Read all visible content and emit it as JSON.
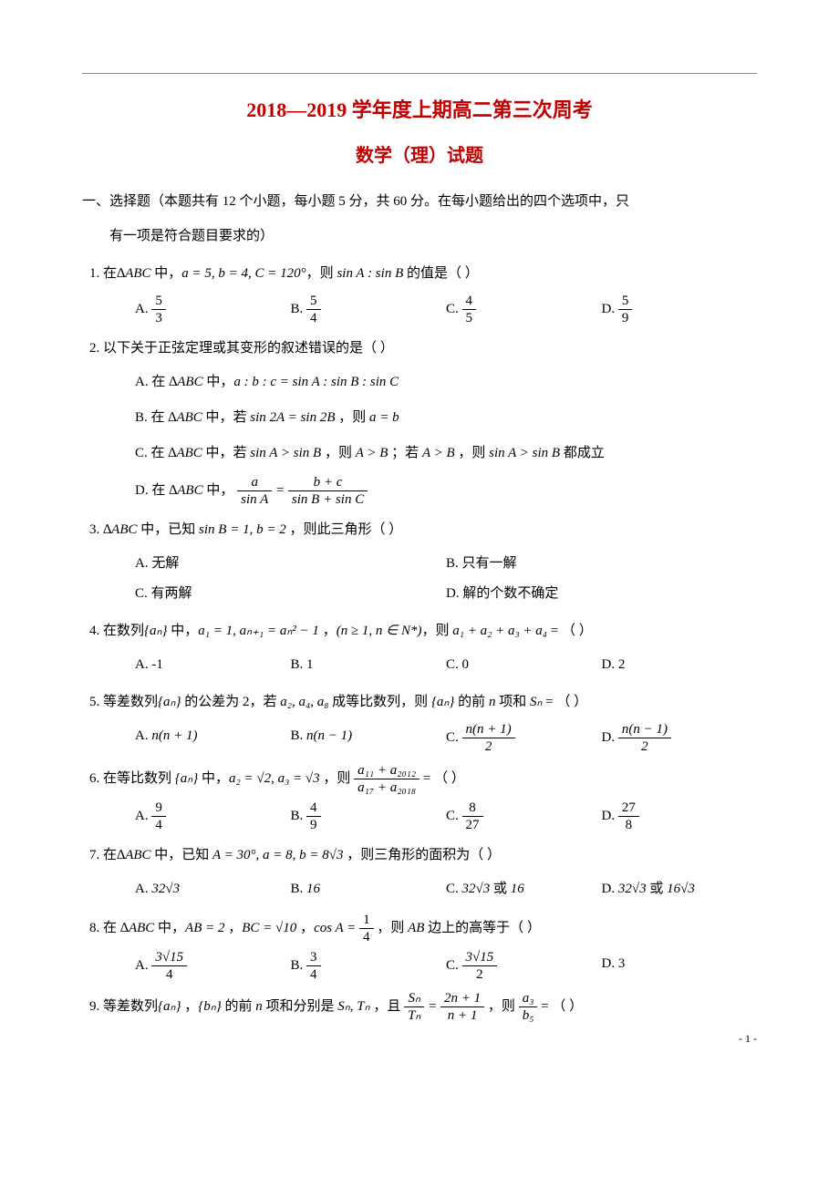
{
  "header": {
    "title": "2018—2019 学年度上期高二第三次周考",
    "subtitle": "数学（理）试题"
  },
  "section1": {
    "header": "一、选择题（本题共有 12 个小题，每小题 5 分，共 60 分。在每小题给出的四个选项中，只",
    "header_cont": "有一项是符合题目要求的）"
  },
  "q1": {
    "stem_pre": "1.  在",
    "stem_delta": "∆ABC",
    "stem_mid": " 中，",
    "stem_eq": "a = 5, b = 4, C = 120°",
    "stem_mid2": "，则 ",
    "stem_ratio": "sin A : sin B",
    "stem_post": " 的值是（     ）",
    "cA": "A.",
    "cA_num": "5",
    "cA_den": "3",
    "cB": "B.",
    "cB_num": "5",
    "cB_den": "4",
    "cC": "C.",
    "cC_num": "4",
    "cC_den": "5",
    "cD": "D.",
    "cD_num": "5",
    "cD_den": "9"
  },
  "q2": {
    "stem": "2.  以下关于正弦定理或其变形的叙述错误的是（     ）",
    "cA_pre": "A. 在 ",
    "cA_abc": "∆ABC",
    "cA_mid": " 中，",
    "cA_eq": "a : b : c = sin A : sin B : sin C",
    "cB_pre": "B. 在 ",
    "cB_abc": "∆ABC",
    "cB_mid": " 中，若 ",
    "cB_eq1": "sin 2A = sin 2B",
    "cB_mid2": " ，则 ",
    "cB_eq2": "a = b",
    "cC_pre": "C. 在 ",
    "cC_abc": "∆ABC",
    "cC_mid": " 中，若 ",
    "cC_eq1": "sin A > sin B",
    "cC_mid2": " ，则 ",
    "cC_eq2": "A > B",
    "cC_mid3": " ；若 ",
    "cC_eq3": "A > B",
    "cC_mid4": " ，则 ",
    "cC_eq4": "sin A > sin B",
    "cC_post": " 都成立",
    "cD_pre": "D. 在 ",
    "cD_abc": "∆ABC",
    "cD_mid": " 中，",
    "cD_lnum": "a",
    "cD_lden": "sin A",
    "cD_eq": " = ",
    "cD_rnum": "b + c",
    "cD_rden": "sin B + sin C"
  },
  "q3": {
    "stem_pre": "3.  ",
    "stem_abc": "∆ABC",
    "stem_mid": " 中，已知 ",
    "stem_eq": "sin B = 1, b = 2",
    "stem_post": " ，则此三角形（     ）",
    "cA": "A. 无解",
    "cB": "B. 只有一解",
    "cC": "C. 有两解",
    "cD": "D. 解的个数不确定"
  },
  "q4": {
    "stem_pre": "4.  在数列",
    "stem_set": "{aₙ}",
    "stem_mid1": " 中，",
    "stem_eq1": "a₁ = 1, aₙ₊₁ = aₙ² − 1",
    "stem_mid2": " ，",
    "stem_cond": "(n ≥ 1, n ∈ N*)",
    "stem_mid3": "，则 ",
    "stem_sum": "a₁ + a₂ + a₃ + a₄",
    "stem_post": " = （     ）",
    "cA": "A. -1",
    "cB": "B. 1",
    "cC": "C. 0",
    "cD": "D. 2"
  },
  "q5": {
    "stem_pre": "5.  等差数列",
    "stem_set": "{aₙ}",
    "stem_mid1": " 的公差为 2，若 ",
    "stem_terms": "a₂, a₄, a₈",
    "stem_mid2": " 成等比数列，则 ",
    "stem_set2": "{aₙ}",
    "stem_mid3": " 的前 ",
    "stem_n": "n",
    "stem_mid4": " 项和 ",
    "stem_sn": "Sₙ",
    "stem_post": " = （     ）",
    "cA": "A.",
    "cA_expr": "n(n + 1)",
    "cB": "B.",
    "cB_expr": "n(n − 1)",
    "cC": "C.",
    "cC_num": "n(n + 1)",
    "cC_den": "2",
    "cD": "D.",
    "cD_num": "n(n − 1)",
    "cD_den": "2"
  },
  "q6": {
    "stem_pre": "6.  在等比数列  ",
    "stem_set": "{aₙ}",
    "stem_mid1": " 中，",
    "stem_a2": "a₂ = √2, a₃ = √3",
    "stem_mid2": "  ，则 ",
    "stem_fnum": "a₁₁ + a₂₀₁₂",
    "stem_fden": "a₁₇ + a₂₀₁₈",
    "stem_post": "  = （     ）",
    "cA": "A.",
    "cA_num": "9",
    "cA_den": "4",
    "cB": "B.",
    "cB_num": "4",
    "cB_den": "9",
    "cC": "C.",
    "cC_num": "8",
    "cC_den": "27",
    "cD": "D.",
    "cD_num": "27",
    "cD_den": "8"
  },
  "q7": {
    "stem_pre": "7.  在",
    "stem_abc": "∆ABC",
    "stem_mid": " 中，已知 ",
    "stem_eq": "A = 30°, a = 8, b = 8√3",
    "stem_post": " ，则三角形的面积为（     ）",
    "cA": "A.",
    "cA_expr": "32√3",
    "cB": "B.",
    "cB_expr": "16",
    "cC": "C.",
    "cC_expr1": "32√3",
    "cC_or": " 或 ",
    "cC_expr2": "16",
    "cD": "D.",
    "cD_expr1": "32√3",
    "cD_or": " 或 ",
    "cD_expr2": "16√3"
  },
  "q8": {
    "stem_pre": "8.  在  ",
    "stem_abc": "∆ABC",
    "stem_mid1": " 中，",
    "stem_ab": "AB = 2",
    "stem_comma1": " ，",
    "stem_bc": "BC = √10",
    "stem_comma2": " ，",
    "stem_cos_pre": "cos A = ",
    "stem_cnum": "1",
    "stem_cden": "4",
    "stem_mid2": "   ，则 ",
    "stem_ab2": "AB",
    "stem_post": "  边上的高等于（     ）",
    "cA": "A.",
    "cA_num": "3√15",
    "cA_den": "4",
    "cB": "B.",
    "cB_num": "3",
    "cB_den": "4",
    "cC": "C.",
    "cC_num": "3√15",
    "cC_den": "2",
    "cD": "D. 3"
  },
  "q9": {
    "stem_pre": "9.  等差数列",
    "stem_an": "{aₙ}",
    "stem_comma": " ，",
    "stem_bn": "{bₙ}",
    "stem_mid1": " 的前 ",
    "stem_n": "n",
    "stem_mid2": " 项和分别是 ",
    "stem_st": "Sₙ, Tₙ",
    "stem_mid3": " ，且 ",
    "stem_f1_num": "Sₙ",
    "stem_f1_den": "Tₙ",
    "stem_eq": " = ",
    "stem_f2_num": "2n + 1",
    "stem_f2_den": "n + 1",
    "stem_mid4": " ，则 ",
    "stem_f3_num": "a₃",
    "stem_f3_den": "b₅",
    "stem_post": " = （     ）"
  },
  "page_number": "- 1 -"
}
